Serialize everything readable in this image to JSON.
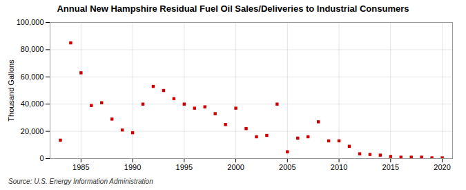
{
  "chart_data": {
    "type": "scatter",
    "title": "Annual New Hampshire Residual Fuel Oil Sales/Deliveries to Industrial Consumers",
    "ylabel": "Thousand Gallons",
    "source": "Source: U.S. Energy Information Administration",
    "x": [
      1983,
      1984,
      1985,
      1986,
      1987,
      1988,
      1989,
      1990,
      1991,
      1992,
      1993,
      1994,
      1995,
      1996,
      1997,
      1998,
      1999,
      2000,
      2001,
      2002,
      2003,
      2004,
      2005,
      2006,
      2007,
      2008,
      2009,
      2010,
      2011,
      2012,
      2013,
      2014,
      2015,
      2016,
      2017,
      2018,
      2019,
      2020
    ],
    "values": [
      13500,
      85000,
      63000,
      39000,
      41000,
      29000,
      21000,
      19000,
      40000,
      53000,
      50000,
      44000,
      40000,
      37000,
      38000,
      33000,
      25000,
      37000,
      22000,
      16000,
      17000,
      40000,
      5000,
      15000,
      16000,
      27000,
      13000,
      13000,
      9000,
      3500,
      3000,
      2500,
      1500,
      1000,
      1000,
      1000,
      500,
      500
    ],
    "color": "#cc0000",
    "marker": "square",
    "xlim": [
      1982,
      2021
    ],
    "ylim": [
      0,
      100000
    ],
    "xticks": [
      1985,
      1990,
      1995,
      2000,
      2005,
      2010,
      2015,
      2020
    ],
    "yticks": [
      0,
      {
        "value": 20000,
        "label": "20,000"
      },
      {
        "value": 40000,
        "label": "40,000"
      },
      {
        "value": 60000,
        "label": "60,000"
      },
      {
        "value": 80000,
        "label": "80,000"
      },
      {
        "value": 100000,
        "label": "100,000"
      }
    ],
    "grid": true
  }
}
